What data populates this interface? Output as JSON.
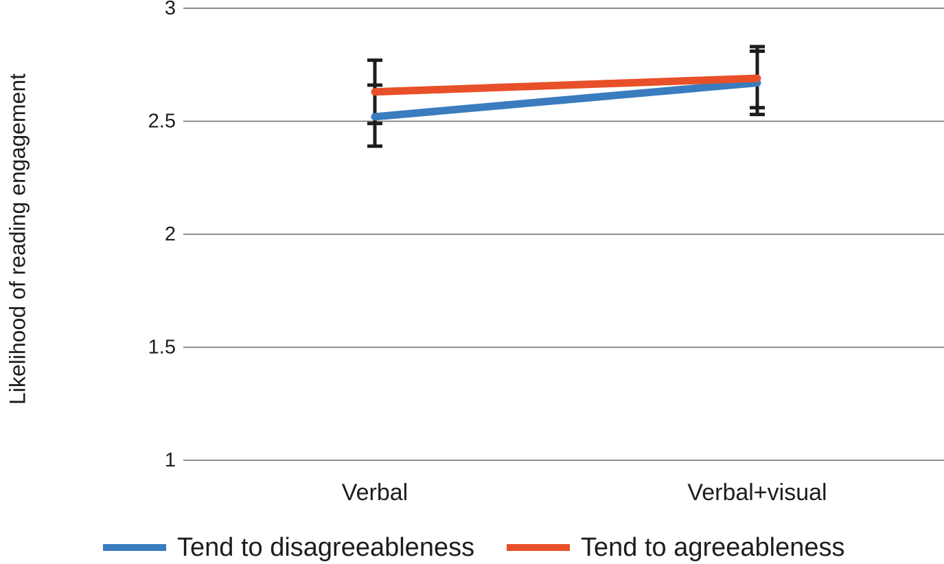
{
  "chart_data": {
    "type": "line",
    "title": "",
    "xlabel": "",
    "ylabel": "Likelihood of reading engagement",
    "categories": [
      "Verbal",
      "Verbal+visual"
    ],
    "y_ticks": [
      "3",
      "2.5",
      "2",
      "1.5",
      "1"
    ],
    "ylim": [
      1,
      3
    ],
    "grid": "horizontal-only",
    "gridline_color": "#7d7d7d",
    "text_color": "#1d1d1b",
    "error_bar_color": "#1d1d1b",
    "marker": "none",
    "legend_position": "bottom",
    "series": [
      {
        "name": "Tend to disagreeableness",
        "color": "#3a7cbe",
        "values": [
          2.52,
          2.67
        ],
        "error_low": [
          2.39,
          2.53
        ],
        "error_high": [
          2.66,
          2.81
        ]
      },
      {
        "name": "Tend to agreeableness",
        "color": "#e85029",
        "values": [
          2.63,
          2.69
        ],
        "error_low": [
          2.49,
          2.56
        ],
        "error_high": [
          2.77,
          2.83
        ]
      }
    ]
  }
}
